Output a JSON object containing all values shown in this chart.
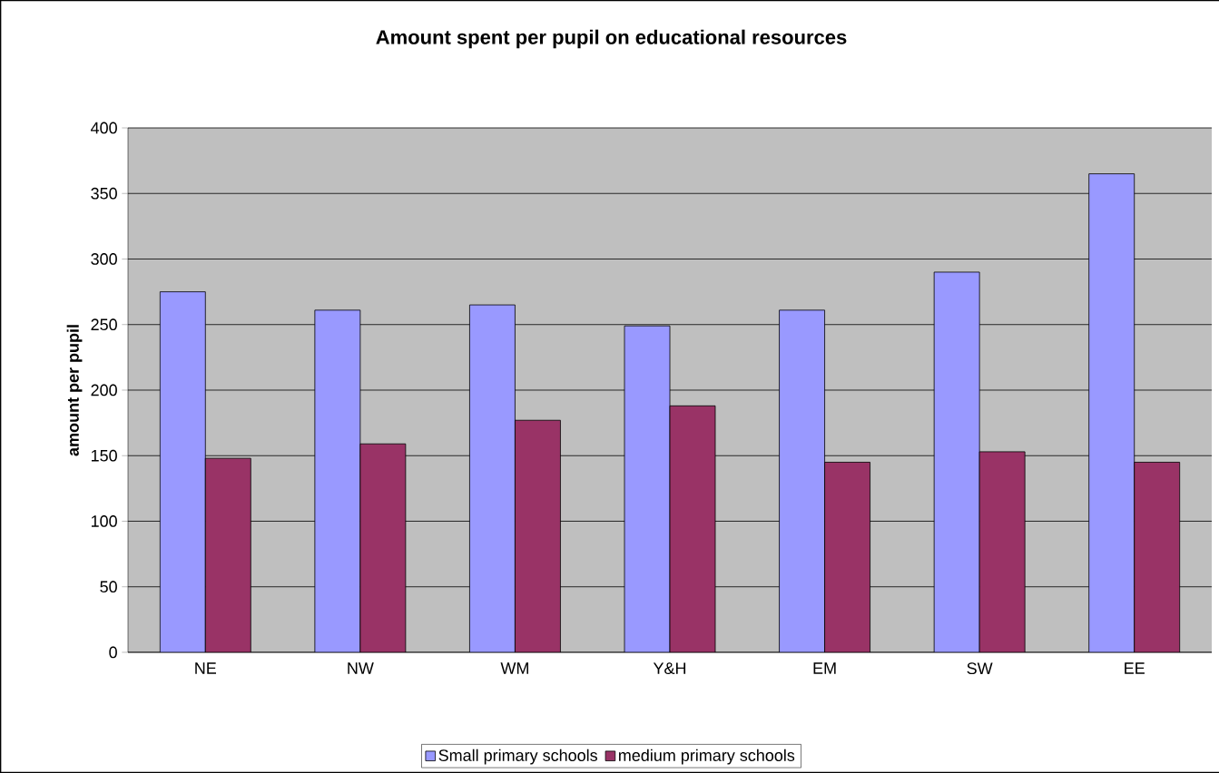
{
  "chart_data": {
    "type": "bar",
    "title": "Amount spent per pupil on educational resources",
    "ylabel": "amount per pupil",
    "categories": [
      "NE",
      "NW",
      "WM",
      "Y&H",
      "EM",
      "SW",
      "EE"
    ],
    "series": [
      {
        "name": "Small primary schools",
        "color": "#9999ff",
        "values": [
          275,
          261,
          265,
          249,
          261,
          290,
          365
        ]
      },
      {
        "name": "medium primary schools",
        "color": "#993366",
        "values": [
          148,
          159,
          177,
          188,
          145,
          153,
          145
        ]
      }
    ],
    "ylim": [
      0,
      400
    ],
    "yticks": [
      0,
      50,
      100,
      150,
      200,
      250,
      300,
      350,
      400
    ],
    "grid": "y",
    "legend": "bottom"
  }
}
